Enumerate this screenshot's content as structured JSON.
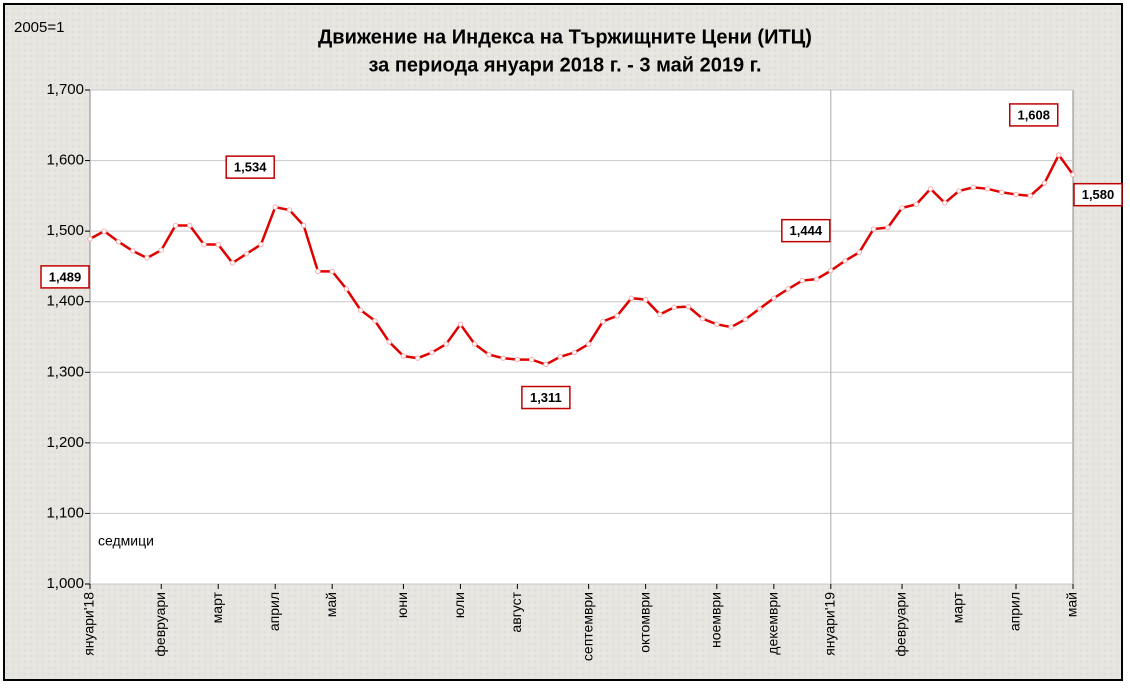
{
  "chart_data": {
    "type": "line",
    "title": "Движение на Индекса на Тържищните Цени (ИТЦ)",
    "subtitle": "за периода януари 2018 г. - 3 май 2019 г.",
    "annotations": [
      "2005=1",
      "седмици"
    ],
    "categories": [
      "януари'18",
      null,
      null,
      null,
      null,
      "февруари",
      null,
      null,
      null,
      "март",
      null,
      null,
      null,
      "април",
      null,
      null,
      null,
      "май",
      null,
      null,
      null,
      null,
      "юни",
      null,
      null,
      null,
      "юли",
      null,
      null,
      null,
      "август",
      null,
      null,
      null,
      null,
      "септември",
      null,
      null,
      null,
      "октомври",
      null,
      null,
      null,
      null,
      "ноември",
      null,
      null,
      null,
      "декември",
      null,
      null,
      null,
      "януари'19",
      null,
      null,
      null,
      null,
      "февруари",
      null,
      null,
      null,
      "март",
      null,
      null,
      null,
      "април",
      null,
      null,
      null,
      "май"
    ],
    "series": [
      {
        "color": "#e00000",
        "values": [
          1.489,
          1.5,
          1.485,
          1.472,
          1.462,
          1.473,
          1.508,
          1.508,
          1.481,
          1.481,
          1.455,
          1.468,
          1.481,
          1.534,
          1.53,
          1.508,
          1.443,
          1.443,
          1.418,
          1.388,
          1.373,
          1.343,
          1.323,
          1.32,
          1.328,
          1.34,
          1.368,
          1.34,
          1.325,
          1.32,
          1.318,
          1.318,
          1.311,
          1.322,
          1.328,
          1.34,
          1.372,
          1.38,
          1.405,
          1.403,
          1.382,
          1.392,
          1.393,
          1.376,
          1.368,
          1.364,
          1.375,
          1.39,
          1.405,
          1.418,
          1.43,
          1.432,
          1.444,
          1.458,
          1.47,
          1.503,
          1.505,
          1.533,
          1.538,
          1.56,
          1.54,
          1.557,
          1.562,
          1.56,
          1.555,
          1.552,
          1.55,
          1.568,
          1.608,
          1.58
        ],
        "value_labels": [
          "1,489",
          null,
          null,
          null,
          null,
          null,
          null,
          null,
          null,
          null,
          null,
          null,
          null,
          "1,534",
          null,
          null,
          null,
          null,
          null,
          null,
          null,
          null,
          null,
          null,
          null,
          null,
          null,
          null,
          null,
          null,
          null,
          null,
          "1,311",
          null,
          null,
          null,
          null,
          null,
          null,
          null,
          null,
          null,
          null,
          null,
          null,
          null,
          null,
          null,
          null,
          null,
          null,
          null,
          "1,444",
          null,
          null,
          null,
          null,
          null,
          null,
          null,
          null,
          null,
          null,
          null,
          null,
          null,
          null,
          null,
          "1,608",
          "1,580"
        ]
      }
    ],
    "ylim": [
      1.0,
      1.7
    ],
    "yticks": [
      {
        "value": 1.0,
        "label": "1,000"
      },
      {
        "value": 1.1,
        "label": "1,100"
      },
      {
        "value": 1.2,
        "label": "1,200"
      },
      {
        "value": 1.3,
        "label": "1,300"
      },
      {
        "value": 1.4,
        "label": "1,400"
      },
      {
        "value": 1.5,
        "label": "1,500"
      },
      {
        "value": 1.6,
        "label": "1,600"
      },
      {
        "value": 1.7,
        "label": "1,700"
      }
    ],
    "grid": true
  }
}
